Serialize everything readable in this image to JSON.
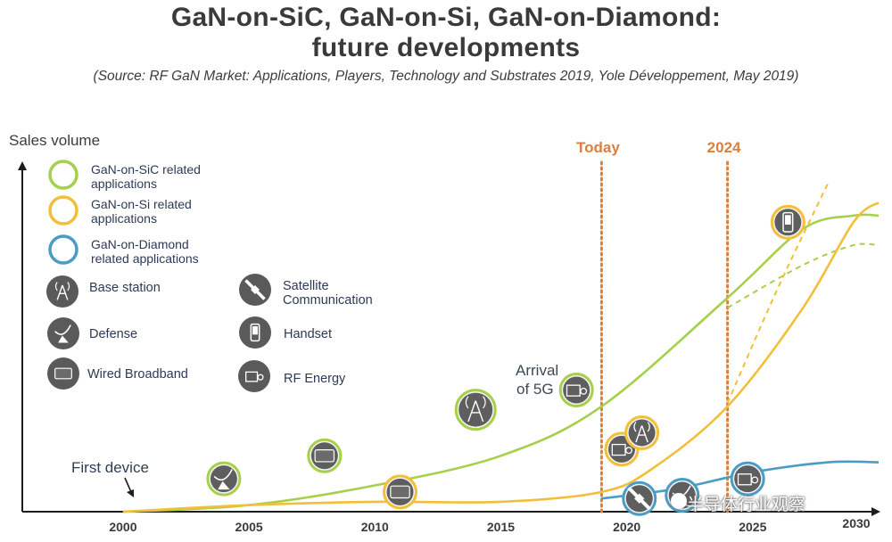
{
  "header": {
    "title_line1": "GaN-on-SiC, GaN-on-Si, GaN-on-Diamond:",
    "title_line2": "future developments",
    "source": "(Source: RF GaN Market: Applications, Players, Technology and Substrates 2019, Yole Développement, May 2019)"
  },
  "legend": {
    "series": [
      {
        "label_line1": "GaN-on-SiC related",
        "label_line2": "applications",
        "color": "#a6cf4b"
      },
      {
        "label_line1": "GaN-on-Si related",
        "label_line2": "applications",
        "color": "#f2bf3a"
      },
      {
        "label_line1": "GaN-on-Diamond",
        "label_line2": "related applications",
        "color": "#4a9cc4"
      }
    ],
    "categories": [
      {
        "label_line1": "Base station",
        "label_line2": "",
        "icon": "antenna-tower-icon"
      },
      {
        "label_line1": "Satellite",
        "label_line2": "Communication",
        "icon": "satellite-icon"
      },
      {
        "label_line1": "Defense",
        "label_line2": "",
        "icon": "radar-dish-icon"
      },
      {
        "label_line1": "Handset",
        "label_line2": "",
        "icon": "handset-icon"
      },
      {
        "label_line1": "Wired Broadband",
        "label_line2": "",
        "icon": "modem-icon"
      },
      {
        "label_line1": "RF Energy",
        "label_line2": "",
        "icon": "rf-energy-icon"
      }
    ]
  },
  "annotations": {
    "today": "Today",
    "y2024": "2024",
    "arrival_line1": "Arrival",
    "arrival_line2": "of 5G",
    "first_device": "First device"
  },
  "watermark": "半导体行业观察",
  "chart_data": {
    "type": "line",
    "ylabel": "Sales volume",
    "xlabel": "",
    "x_ticks": [
      2000,
      2005,
      2010,
      2015,
      2020,
      2025,
      2030
    ],
    "xlim": [
      1996,
      2030
    ],
    "ylim": [
      0,
      100
    ],
    "grid": false,
    "legend_position": "top-left",
    "colors": {
      "sic": "#a6cf4b",
      "si": "#f2bf3a",
      "diamond": "#4a9cc4",
      "marker": "#d9803f"
    },
    "vlines": [
      {
        "x": 2019,
        "label": "Today"
      },
      {
        "x": 2024,
        "label": "2024"
      }
    ],
    "series": [
      {
        "key": "sic",
        "style": "solid",
        "points": [
          [
            2000,
            0
          ],
          [
            2005,
            2
          ],
          [
            2010,
            8
          ],
          [
            2015,
            17
          ],
          [
            2019,
            32
          ],
          [
            2024,
            65
          ],
          [
            2027,
            86
          ],
          [
            2029,
            90
          ],
          [
            2030,
            90
          ]
        ]
      },
      {
        "key": "sic",
        "style": "dashed",
        "points": [
          [
            2024,
            62
          ],
          [
            2027,
            75
          ],
          [
            2029,
            81
          ],
          [
            2030,
            81
          ]
        ]
      },
      {
        "key": "si",
        "style": "solid",
        "points": [
          [
            2000,
            0
          ],
          [
            2005,
            2
          ],
          [
            2010,
            3
          ],
          [
            2015,
            3
          ],
          [
            2019,
            6
          ],
          [
            2021,
            13
          ],
          [
            2024,
            32
          ],
          [
            2027,
            62
          ],
          [
            2029,
            88
          ],
          [
            2030,
            94
          ]
        ]
      },
      {
        "key": "si",
        "style": "dashed",
        "points": [
          [
            2024,
            33
          ],
          [
            2026,
            68
          ],
          [
            2028,
            100
          ]
        ]
      },
      {
        "key": "diamond",
        "style": "solid",
        "points": [
          [
            2019,
            4
          ],
          [
            2022,
            7
          ],
          [
            2025,
            12
          ],
          [
            2028,
            15
          ],
          [
            2030,
            15
          ]
        ]
      }
    ],
    "app_markers": [
      {
        "x": 2004,
        "y": 10,
        "icon": "radar-dish-icon",
        "color": "#a6cf4b"
      },
      {
        "x": 2008,
        "y": 17,
        "icon": "modem-icon",
        "color": "#a6cf4b"
      },
      {
        "x": 2011,
        "y": 6,
        "icon": "modem-icon",
        "color": "#f2bf3a"
      },
      {
        "x": 2014,
        "y": 31,
        "icon": "antenna-tower-icon",
        "color": "#a6cf4b"
      },
      {
        "x": 2018,
        "y": 37,
        "icon": "rf-energy-icon",
        "color": "#a6cf4b"
      },
      {
        "x": 2019.8,
        "y": 19,
        "icon": "rf-energy-icon",
        "color": "#f2bf3a"
      },
      {
        "x": 2020.6,
        "y": 24,
        "icon": "antenna-tower-icon",
        "color": "#f2bf3a"
      },
      {
        "x": 2020.5,
        "y": 4,
        "icon": "satellite-icon",
        "color": "#4a9cc4"
      },
      {
        "x": 2022.2,
        "y": 5,
        "icon": "radar-dish-icon",
        "color": "#4a9cc4"
      },
      {
        "x": 2024.8,
        "y": 10,
        "icon": "rf-energy-icon",
        "color": "#4a9cc4"
      },
      {
        "x": 2026.4,
        "y": 88,
        "icon": "handset-icon",
        "color": "#f2bf3a"
      }
    ]
  }
}
